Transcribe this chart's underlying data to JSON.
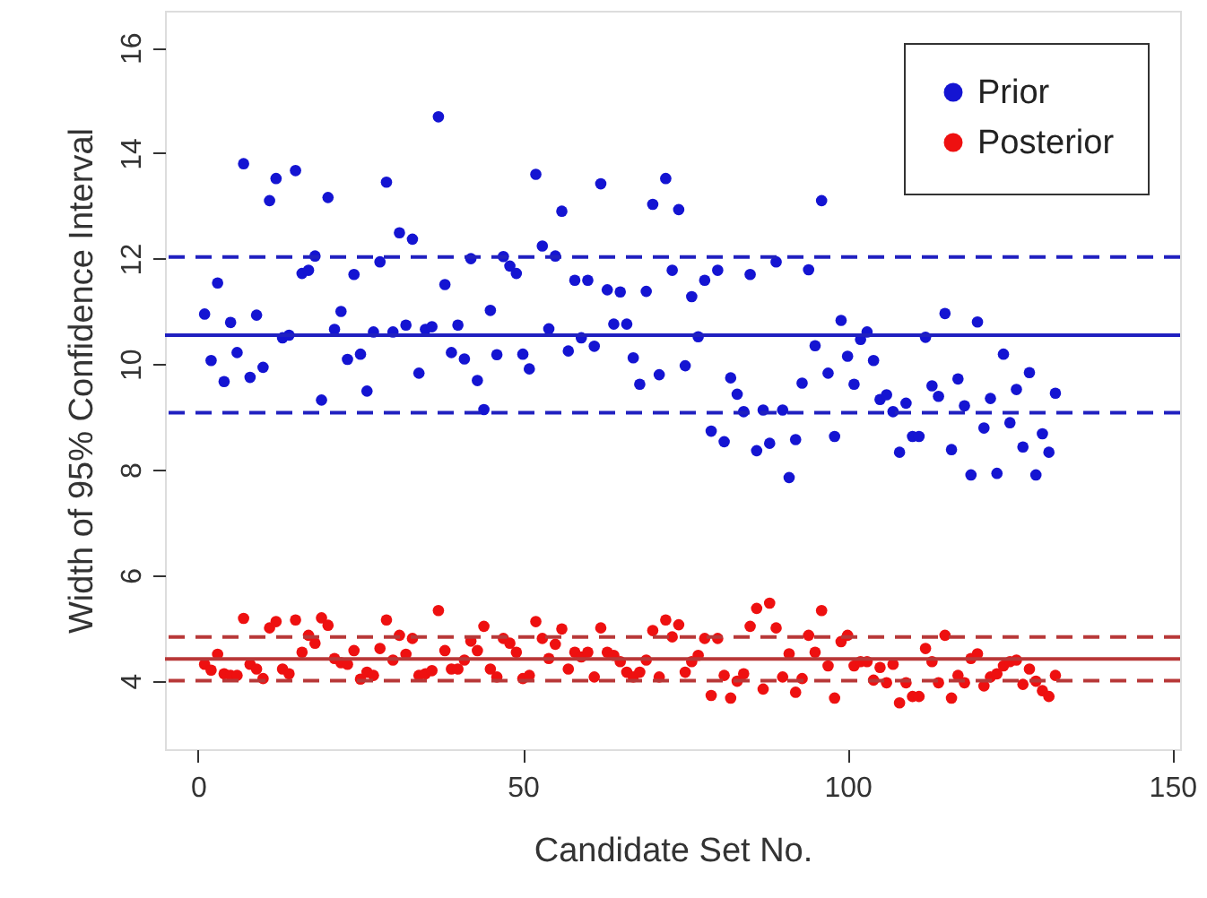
{
  "chart_data": {
    "type": "scatter",
    "xlabel": "Candidate Set No.",
    "ylabel": "Width of 95% Confidence Interval",
    "xlim": [
      -5.1,
      151.2
    ],
    "ylim": [
      2.7,
      16.7
    ],
    "xticks": [
      0,
      50,
      100,
      150
    ],
    "yticks": [
      4,
      6,
      8,
      10,
      12,
      14,
      16
    ],
    "grid": false,
    "legend": "top right",
    "marker": "circle",
    "x": [
      1,
      2,
      3,
      4,
      5,
      6,
      7,
      8,
      9,
      10,
      11,
      12,
      13,
      14,
      15,
      16,
      17,
      18,
      19,
      20,
      21,
      22,
      23,
      24,
      25,
      26,
      27,
      28,
      29,
      30,
      31,
      32,
      33,
      34,
      35,
      36,
      37,
      38,
      39,
      40,
      41,
      42,
      43,
      44,
      45,
      46,
      47,
      48,
      49,
      50,
      51,
      52,
      53,
      54,
      55,
      56,
      57,
      58,
      59,
      60,
      61,
      62,
      63,
      64,
      65,
      66,
      67,
      68,
      69,
      70,
      71,
      72,
      73,
      74,
      75,
      76,
      77,
      78,
      79,
      80,
      81,
      82,
      83,
      84,
      85,
      86,
      87,
      88,
      89,
      90,
      91,
      92,
      93,
      94,
      95,
      96,
      97,
      98,
      99,
      100,
      101,
      102,
      103,
      104,
      105,
      106,
      107,
      108,
      109,
      110,
      111,
      112,
      113,
      114,
      115,
      116,
      117,
      118,
      119,
      120,
      121,
      122,
      123,
      124,
      125,
      126,
      127,
      128,
      129,
      130,
      131,
      132
    ],
    "series": [
      {
        "name": "Prior",
        "color": "#1414d2",
        "values": [
          10.95,
          10.07,
          11.54,
          9.67,
          10.79,
          10.22,
          13.8,
          9.75,
          10.93,
          9.94,
          13.1,
          13.52,
          10.5,
          10.55,
          13.67,
          11.72,
          11.78,
          12.05,
          9.32,
          13.16,
          10.66,
          11.0,
          10.09,
          11.7,
          10.19,
          9.49,
          10.61,
          11.94,
          13.45,
          10.61,
          12.49,
          10.74,
          12.37,
          9.83,
          10.66,
          10.71,
          14.69,
          11.51,
          10.22,
          10.74,
          10.1,
          12.0,
          9.69,
          9.14,
          11.02,
          10.18,
          12.04,
          11.86,
          11.72,
          10.19,
          9.91,
          13.6,
          12.24,
          10.67,
          12.05,
          12.9,
          10.25,
          11.59,
          10.5,
          11.59,
          10.34,
          13.42,
          11.41,
          10.76,
          11.37,
          10.76,
          10.12,
          9.62,
          11.38,
          13.03,
          9.8,
          13.52,
          11.78,
          12.93,
          9.97,
          11.28,
          10.52,
          11.59,
          8.73,
          11.78,
          8.53,
          9.74,
          9.43,
          9.1,
          11.7,
          8.36,
          9.13,
          8.5,
          11.94,
          9.13,
          7.85,
          8.57,
          9.64,
          11.79,
          10.35,
          13.1,
          9.83,
          8.63,
          10.83,
          10.15,
          9.62,
          10.47,
          10.61,
          10.07,
          9.33,
          9.42,
          9.1,
          8.33,
          9.26,
          8.63,
          8.63,
          10.51,
          9.59,
          9.39,
          10.96,
          8.38,
          9.72,
          9.21,
          7.9,
          10.8,
          8.79,
          9.35,
          7.93,
          10.19,
          8.89,
          9.52,
          8.43,
          9.84,
          7.9,
          8.68,
          8.33,
          9.45
        ]
      },
      {
        "name": "Posterior",
        "color": "#ee1010",
        "values": [
          4.31,
          4.2,
          4.5,
          4.13,
          4.1,
          4.1,
          5.18,
          4.31,
          4.22,
          4.04,
          5.0,
          5.12,
          4.22,
          4.13,
          5.15,
          4.54,
          4.86,
          4.71,
          5.19,
          5.05,
          4.42,
          4.34,
          4.31,
          4.57,
          4.03,
          4.16,
          4.1,
          4.61,
          5.15,
          4.39,
          4.86,
          4.5,
          4.8,
          4.1,
          4.13,
          4.19,
          5.33,
          4.57,
          4.22,
          4.22,
          4.39,
          4.75,
          4.57,
          5.03,
          4.22,
          4.07,
          4.8,
          4.71,
          4.54,
          4.04,
          4.1,
          5.12,
          4.8,
          4.42,
          4.69,
          4.98,
          4.22,
          4.54,
          4.45,
          4.54,
          4.07,
          5.0,
          4.54,
          4.48,
          4.36,
          4.16,
          4.07,
          4.16,
          4.39,
          4.95,
          4.07,
          5.15,
          4.83,
          5.06,
          4.16,
          4.36,
          4.48,
          4.8,
          3.72,
          4.8,
          4.1,
          3.67,
          3.99,
          4.13,
          5.03,
          5.37,
          3.84,
          5.47,
          5.0,
          4.07,
          4.51,
          3.78,
          4.04,
          4.86,
          4.54,
          5.33,
          4.28,
          3.67,
          4.74,
          4.86,
          4.28,
          4.36,
          4.36,
          4.01,
          4.25,
          3.96,
          4.31,
          3.58,
          3.96,
          3.7,
          3.7,
          4.61,
          4.36,
          3.96,
          4.86,
          3.67,
          4.1,
          3.96,
          4.42,
          4.51,
          3.9,
          4.07,
          4.13,
          4.28,
          4.36,
          4.39,
          3.93,
          4.22,
          3.99,
          3.81,
          3.7,
          4.1
        ]
      }
    ],
    "ref_lines": [
      {
        "axis": "y",
        "value": 10.55,
        "color": "#2020c0",
        "line_style": "solid"
      },
      {
        "axis": "y",
        "value": 12.03,
        "color": "#2020c0",
        "line_style": "dashed"
      },
      {
        "axis": "y",
        "value": 9.08,
        "color": "#2020c0",
        "line_style": "dashed"
      },
      {
        "axis": "y",
        "value": 4.41,
        "color": "#b83838",
        "line_style": "solid"
      },
      {
        "axis": "y",
        "value": 4.83,
        "color": "#b83838",
        "line_style": "dashed"
      },
      {
        "axis": "y",
        "value": 4.0,
        "color": "#b83838",
        "line_style": "dashed"
      }
    ]
  }
}
